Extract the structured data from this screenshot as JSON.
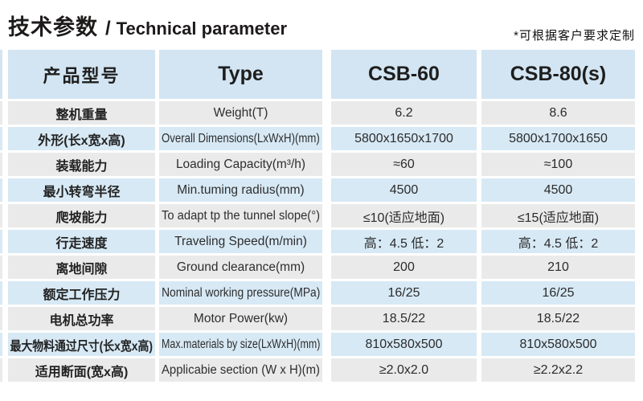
{
  "title": {
    "zh": "技术参数",
    "sep": "/",
    "en": "Technical parameter"
  },
  "note": "*可根据客户要求定制",
  "colors": {
    "header_blue": "#d3e5f2",
    "row_blue": "#d7e9f5",
    "row_gray": "#eaeaea",
    "text": "#262626"
  },
  "table": {
    "headers": {
      "product_model_zh": "产品型号",
      "type_en": "Type",
      "model_1": "CSB-60",
      "model_2": "CSB-80(s)"
    },
    "rows": [
      {
        "zh": "整机重量",
        "en": "Weight(T)",
        "v1": "6.2",
        "v2": "8.6"
      },
      {
        "zh": "外形(长x宽x高)",
        "en": "Overall Dimensions(LxWxH)(mm)",
        "v1": "5800x1650x1700",
        "v2": "5800x1700x1650"
      },
      {
        "zh": "装载能力",
        "en": "Loading Capacity(m³/h)",
        "v1": "≈60",
        "v2": "≈100"
      },
      {
        "zh": "最小转弯半径",
        "en": "Min.tuming radius(mm)",
        "v1": "4500",
        "v2": "4500"
      },
      {
        "zh": "爬坡能力",
        "en": "To adapt tp the tunnel slope(°)",
        "v1": "≤10(适应地面)",
        "v2": "≤15(适应地面)"
      },
      {
        "zh": "行走速度",
        "en": "Traveling Speed(m/min)",
        "v1": "高：4.5 低：2",
        "v2": "高：4.5 低：2"
      },
      {
        "zh": "离地间隙",
        "en": "Ground clearance(mm)",
        "v1": "200",
        "v2": "210"
      },
      {
        "zh": "额定工作压力",
        "en": "Nominal working pressure(MPa)",
        "v1": "16/25",
        "v2": "16/25"
      },
      {
        "zh": "电机总功率",
        "en": "Motor Power(kw)",
        "v1": "18.5/22",
        "v2": "18.5/22"
      },
      {
        "zh": "最大物料通过尺寸(长x宽x高)",
        "en": "Max.materials by size(LxWxH)(mm)",
        "v1": "810x580x500",
        "v2": "810x580x500"
      },
      {
        "zh": "适用断面(宽x高)",
        "en": "Applicabie section (W x H)(m)",
        "v1": "≥2.0x2.0",
        "v2": "≥2.2x2.2"
      }
    ]
  }
}
